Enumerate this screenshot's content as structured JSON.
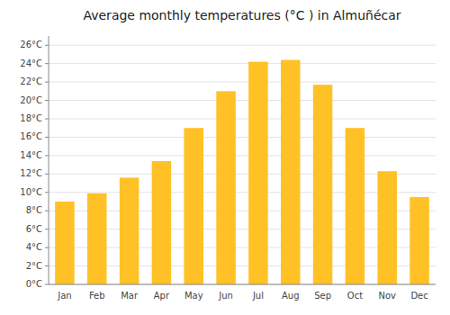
{
  "chart_data": {
    "type": "bar",
    "title": "Average monthly temperatures (°C ) in Almuñécar",
    "categories": [
      "Jan",
      "Feb",
      "Mar",
      "Apr",
      "May",
      "Jun",
      "Jul",
      "Aug",
      "Sep",
      "Oct",
      "Nov",
      "Dec"
    ],
    "values": [
      9.0,
      9.9,
      11.6,
      13.4,
      17.0,
      21.0,
      24.2,
      24.4,
      21.7,
      17.0,
      12.3,
      9.5
    ],
    "color": "#FFC125",
    "ylim": [
      0,
      27
    ],
    "yticks": [
      {
        "value": 0,
        "label": "0°C"
      },
      {
        "value": 2,
        "label": "2°C"
      },
      {
        "value": 4,
        "label": "4°C"
      },
      {
        "value": 6,
        "label": "6°C"
      },
      {
        "value": 8,
        "label": "8°C"
      },
      {
        "value": 10,
        "label": "10°C"
      },
      {
        "value": 12,
        "label": "12°C"
      },
      {
        "value": 14,
        "label": "14°C"
      },
      {
        "value": 16,
        "label": "16°C"
      },
      {
        "value": 18,
        "label": "18°C"
      },
      {
        "value": 20,
        "label": "20°C"
      },
      {
        "value": 22,
        "label": "22°C"
      },
      {
        "value": 24,
        "label": "24°C"
      },
      {
        "value": 26,
        "label": "26°C"
      }
    ],
    "grid": true
  }
}
